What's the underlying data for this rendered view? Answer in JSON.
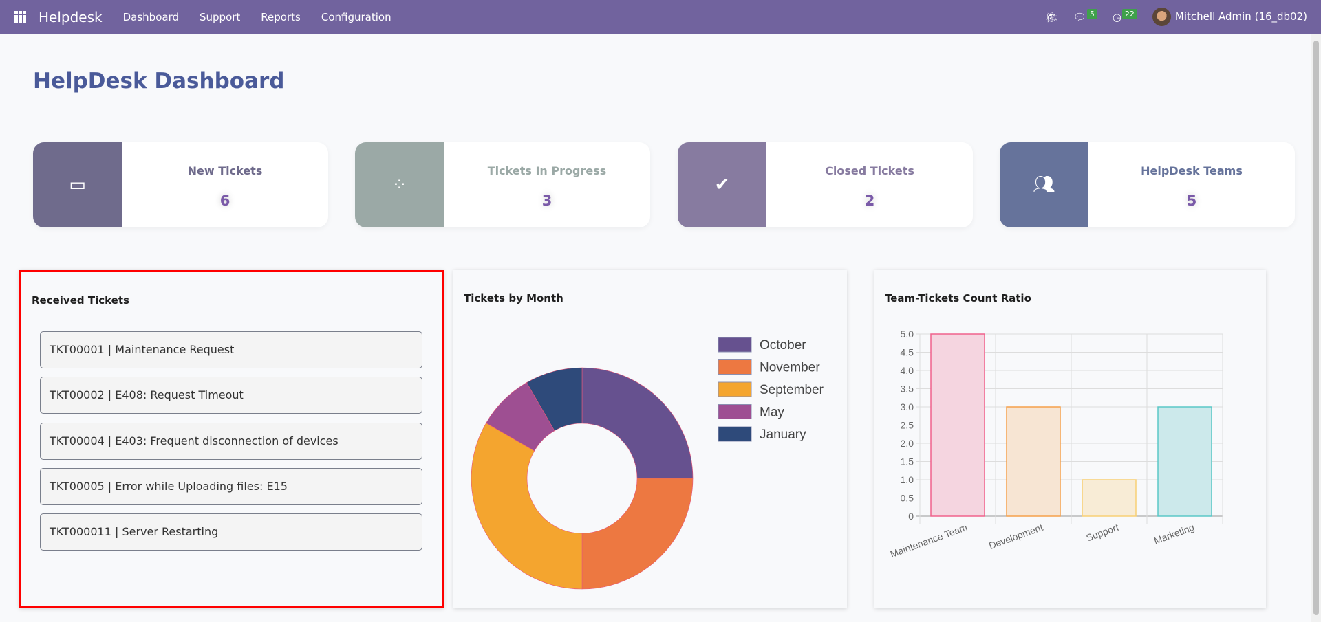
{
  "nav": {
    "app": "Helpdesk",
    "menu": [
      "Dashboard",
      "Support",
      "Reports",
      "Configuration"
    ],
    "messages_count": "5",
    "activities_count": "22",
    "user": "Mitchell Admin (16_db02)"
  },
  "title": "HelpDesk Dashboard",
  "cards": [
    {
      "label": "New Tickets",
      "value": "6",
      "icon": "inbox-icon",
      "color": "#6f6b8c",
      "label_color": "#6f6b8c"
    },
    {
      "label": "Tickets In Progress",
      "value": "3",
      "icon": "spinner-icon",
      "color": "#9ba9a6",
      "label_color": "#9ba9a6"
    },
    {
      "label": "Closed Tickets",
      "value": "2",
      "icon": "check-icon",
      "color": "#877ba0",
      "label_color": "#877ba0"
    },
    {
      "label": "HelpDesk Teams",
      "value": "5",
      "icon": "users-icon",
      "color": "#66739b",
      "label_color": "#66739b"
    }
  ],
  "received": {
    "title": "Received Tickets",
    "tickets": [
      "TKT00001 | Maintenance Request",
      "TKT00002 | E408: Request Timeout",
      "TKT00004 | E403: Frequent disconnection of devices",
      "TKT00005 | Error while Uploading files: E15",
      "TKT000011 | Server Restarting"
    ]
  },
  "chart_data": [
    {
      "type": "pie",
      "title": "Tickets by Month",
      "categories": [
        "October",
        "November",
        "September",
        "May",
        "January"
      ],
      "values": [
        3,
        3,
        4,
        1,
        1
      ],
      "colors": [
        "#66518f",
        "#ed7841",
        "#f4a52f",
        "#9e4f92",
        "#2e4a7a"
      ],
      "legend": "top-right",
      "donut": true
    },
    {
      "type": "bar",
      "title": "Team-Tickets Count Ratio",
      "categories": [
        "Maintenance Team",
        "Development",
        "Support",
        "Marketing"
      ],
      "values": [
        5,
        3,
        1,
        3
      ],
      "ylim": [
        0,
        5
      ],
      "yticks": [
        "0",
        "0.5",
        "1.0",
        "1.5",
        "2.0",
        "2.5",
        "3.0",
        "3.5",
        "4.0",
        "4.5",
        "5.0"
      ],
      "colors": [
        "#f0628c",
        "#f5a04b",
        "#f8d075",
        "#5ac7c7"
      ],
      "fills": [
        "#f5d5e0",
        "#f7e5d3",
        "#f8ecd6",
        "#cce9eb"
      ],
      "grid": true
    }
  ]
}
